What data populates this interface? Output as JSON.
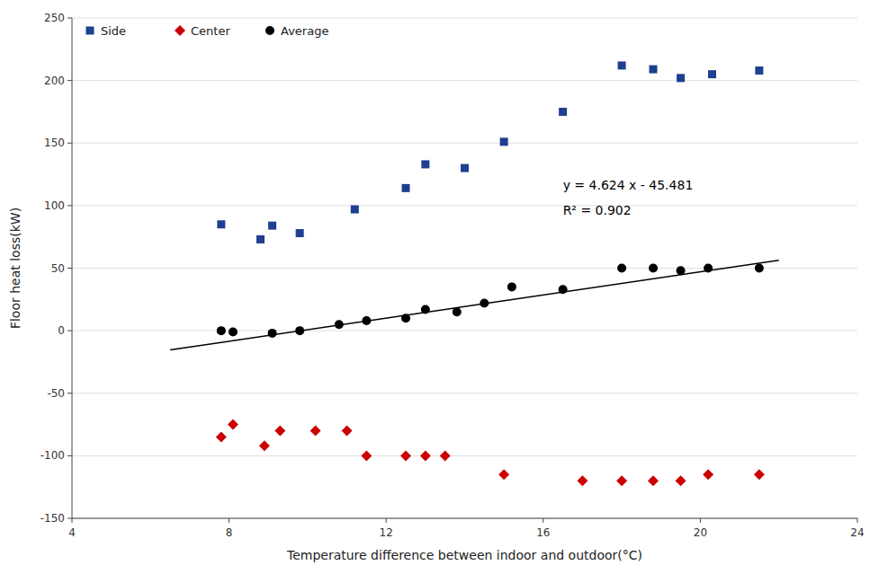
{
  "chart_data": {
    "type": "scatter",
    "xlabel": "Temperature difference between indoor and outdoor(°C)",
    "ylabel": "Floor heat loss(kW)",
    "xlim": [
      4,
      24
    ],
    "ylim": [
      -150,
      250
    ],
    "xticks": [
      4,
      8,
      12,
      16,
      20,
      24
    ],
    "yticks": [
      -150,
      -100,
      -50,
      0,
      50,
      100,
      150,
      200,
      250
    ],
    "grid": true,
    "legend": "upper left",
    "series": [
      {
        "name": "Side",
        "color": "#1f3f8f",
        "marker": "square",
        "x": [
          7.8,
          8.8,
          9.1,
          9.8,
          11.2,
          12.5,
          13.0,
          14.0,
          15.0,
          16.5,
          18.0,
          18.8,
          19.5,
          20.3,
          21.5
        ],
        "values": [
          85,
          73,
          84,
          78,
          97,
          114,
          133,
          130,
          151,
          175,
          212,
          209,
          202,
          205,
          208
        ]
      },
      {
        "name": "Center",
        "color": "#cc0000",
        "marker": "diamond",
        "x": [
          7.8,
          8.1,
          8.9,
          9.3,
          10.2,
          11.0,
          11.5,
          12.5,
          13.0,
          13.5,
          15.0,
          17.0,
          18.0,
          18.8,
          19.5,
          20.2,
          21.5
        ],
        "values": [
          -85,
          -75,
          -92,
          -80,
          -80,
          -80,
          -100,
          -100,
          -100,
          -100,
          -115,
          -120,
          -120,
          -120,
          -120,
          -115,
          -115
        ]
      },
      {
        "name": "Average",
        "color": "#000000",
        "marker": "circle",
        "x": [
          7.8,
          8.1,
          9.1,
          9.8,
          10.8,
          11.5,
          12.5,
          13.0,
          13.8,
          14.5,
          15.2,
          16.5,
          18.0,
          18.8,
          19.5,
          20.2,
          21.5
        ],
        "values": [
          0,
          -1,
          -2,
          0,
          5,
          8,
          10,
          17,
          15,
          22,
          35,
          33,
          50,
          50,
          48,
          50,
          50
        ]
      }
    ],
    "trend": {
      "type": "line",
      "color": "#000000",
      "x": [
        6.5,
        22.0
      ],
      "values": [
        -15.425,
        56.247
      ]
    },
    "annotations": [
      {
        "text": "y = 4.624 x - 45.481",
        "x": 16.5,
        "y": 113
      },
      {
        "text": "R² = 0.902",
        "x": 16.5,
        "y": 93
      }
    ]
  }
}
